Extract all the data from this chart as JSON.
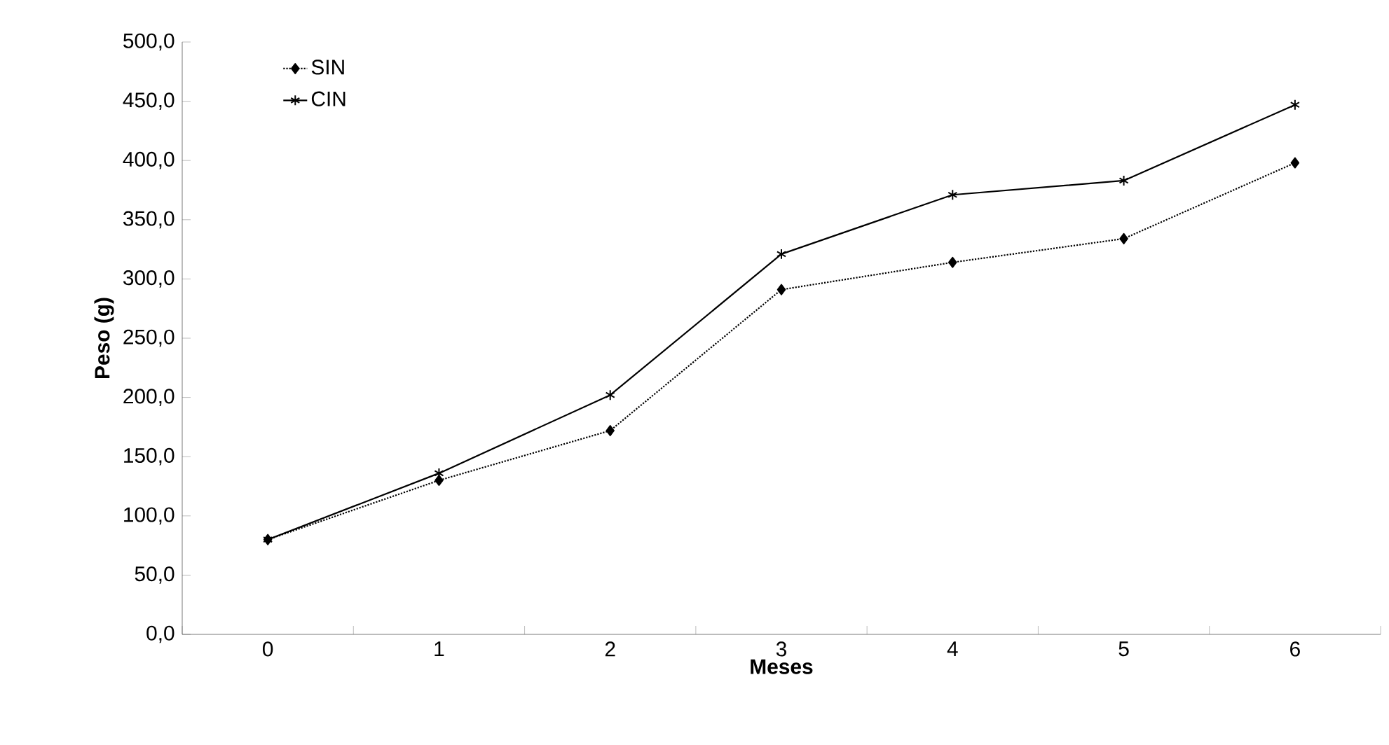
{
  "chart_data": {
    "type": "line",
    "xlabel": "Meses",
    "ylabel": "Peso (g)",
    "categories": [
      "0",
      "1",
      "2",
      "3",
      "4",
      "5",
      "6"
    ],
    "series": [
      {
        "name": "SIN",
        "color": "#000000",
        "marker": "diamond",
        "line_style": "dotted",
        "values": [
          80,
          130,
          172,
          291,
          314,
          334,
          398
        ]
      },
      {
        "name": "CIN",
        "color": "#000000",
        "marker": "cross",
        "line_style": "solid",
        "values": [
          80,
          136,
          202,
          321,
          371,
          383,
          447
        ]
      }
    ],
    "ylim": [
      0,
      500
    ],
    "yticks": [
      {
        "value": 0,
        "label": "0,0"
      },
      {
        "value": 50,
        "label": "50,0"
      },
      {
        "value": 100,
        "label": "100,0"
      },
      {
        "value": 150,
        "label": "150,0"
      },
      {
        "value": 200,
        "label": "200,0"
      },
      {
        "value": 250,
        "label": "250,0"
      },
      {
        "value": 300,
        "label": "300,0"
      },
      {
        "value": 350,
        "label": "350,0"
      },
      {
        "value": 400,
        "label": "400,0"
      },
      {
        "value": 450,
        "label": "450,0"
      },
      {
        "value": 500,
        "label": "500,0"
      }
    ],
    "grid": false,
    "legend": "top left"
  }
}
